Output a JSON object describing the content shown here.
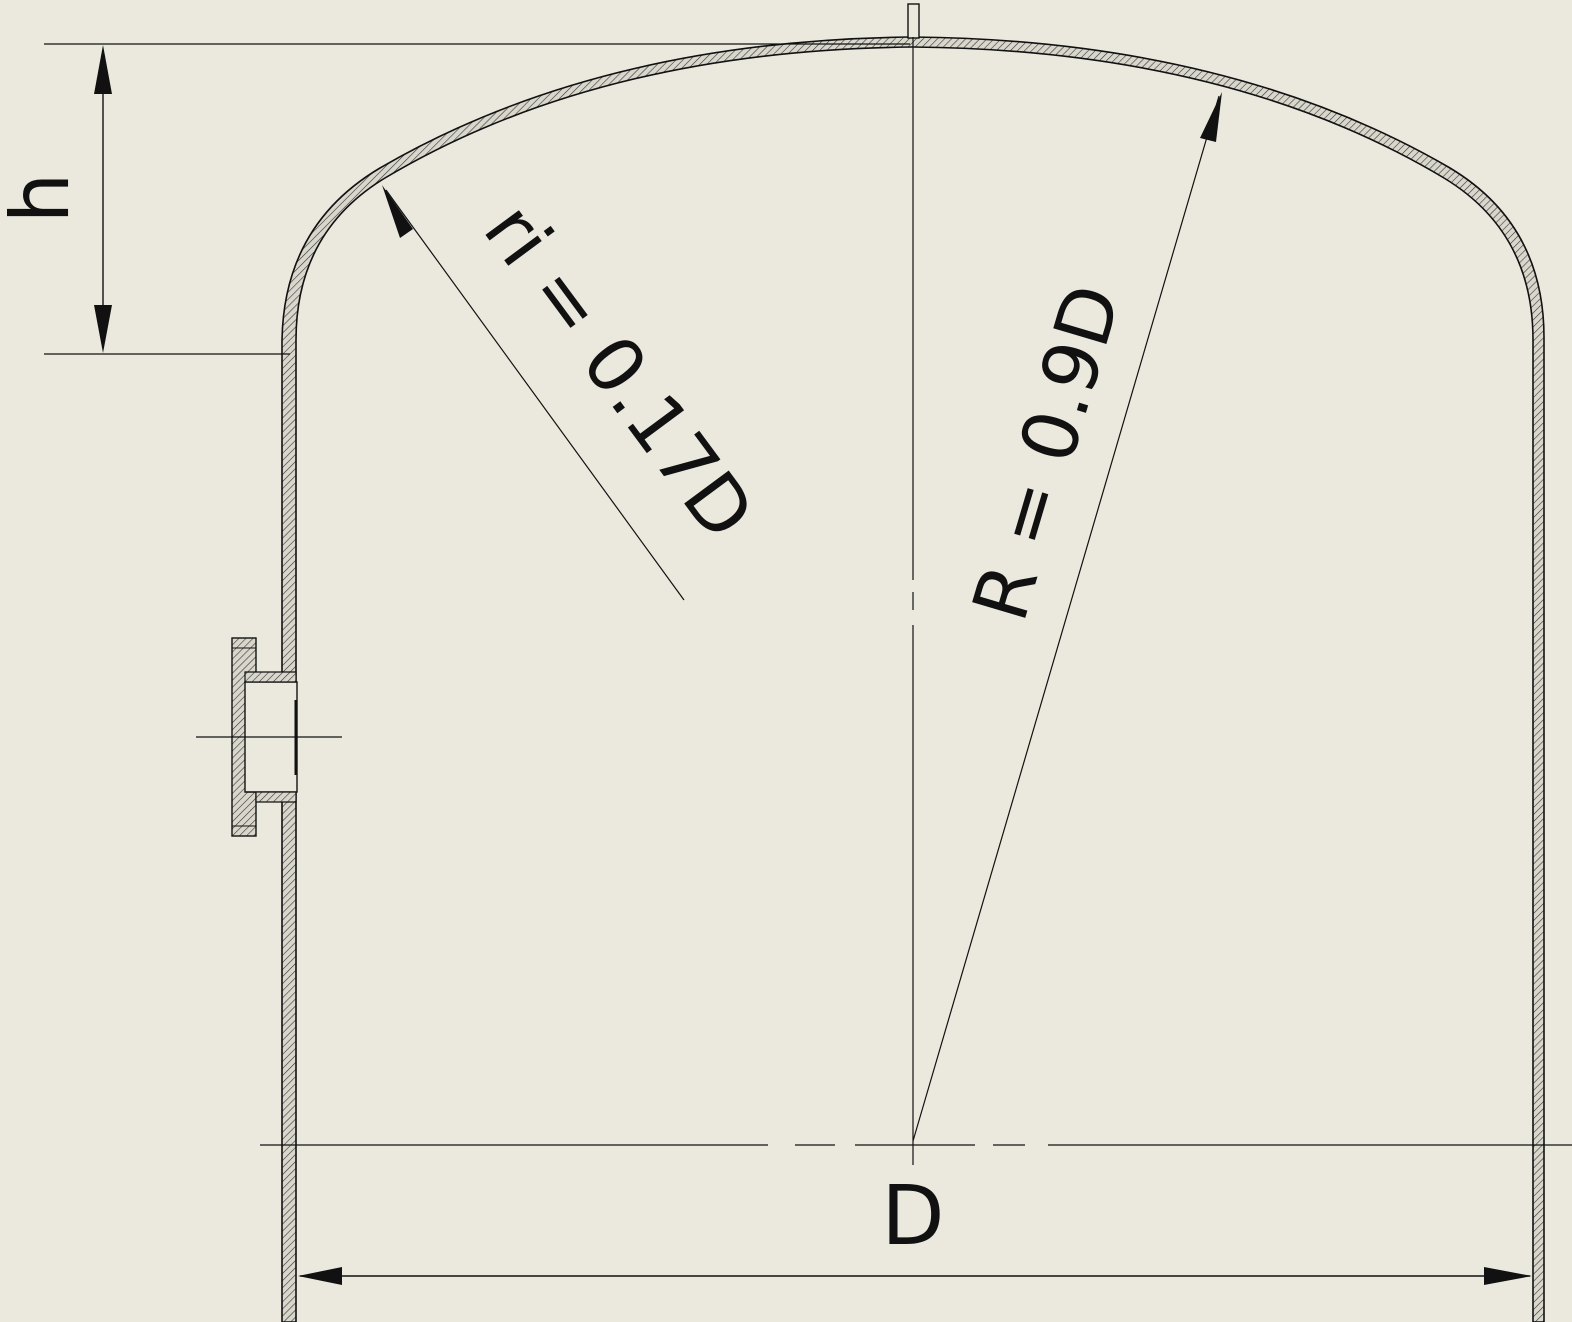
{
  "drawing": {
    "labels": {
      "height": "h",
      "knuckle_radius": "ri = 0.17D",
      "crown_radius": "R = 0.9D",
      "diameter": "D"
    },
    "colors": {
      "background": "#ebe9de",
      "line": "#111111"
    }
  }
}
